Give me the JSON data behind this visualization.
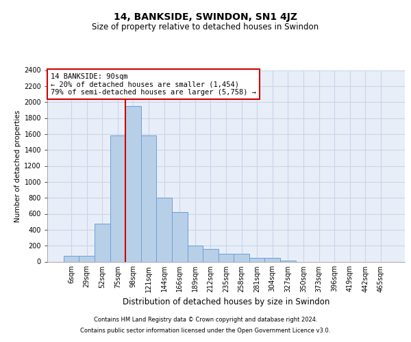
{
  "title1": "14, BANKSIDE, SWINDON, SN1 4JZ",
  "title2": "Size of property relative to detached houses in Swindon",
  "xlabel": "Distribution of detached houses by size in Swindon",
  "ylabel": "Number of detached properties",
  "footer1": "Contains HM Land Registry data © Crown copyright and database right 2024.",
  "footer2": "Contains public sector information licensed under the Open Government Licence v3.0.",
  "annotation_line1": "14 BANKSIDE: 90sqm",
  "annotation_line2": "← 20% of detached houses are smaller (1,454)",
  "annotation_line3": "79% of semi-detached houses are larger (5,758) →",
  "bar_color": "#b8cfe8",
  "bar_edge_color": "#6a9fd8",
  "vline_color": "#cc0000",
  "annotation_box_color": "#cc0000",
  "grid_color": "#c8d4e8",
  "bg_color": "#e8eef8",
  "categories": [
    "6sqm",
    "29sqm",
    "52sqm",
    "75sqm",
    "98sqm",
    "121sqm",
    "144sqm",
    "166sqm",
    "189sqm",
    "212sqm",
    "235sqm",
    "258sqm",
    "281sqm",
    "304sqm",
    "327sqm",
    "350sqm",
    "373sqm",
    "396sqm",
    "419sqm",
    "442sqm",
    "465sqm"
  ],
  "values": [
    75,
    75,
    480,
    1580,
    1950,
    1580,
    800,
    620,
    200,
    160,
    100,
    100,
    50,
    50,
    10,
    0,
    0,
    0,
    0,
    0,
    0
  ],
  "ylim": [
    0,
    2400
  ],
  "yticks": [
    0,
    200,
    400,
    600,
    800,
    1000,
    1200,
    1400,
    1600,
    1800,
    2000,
    2200,
    2400
  ],
  "vline_x_idx": 4,
  "title1_fontsize": 10,
  "title2_fontsize": 8.5,
  "ylabel_fontsize": 7.5,
  "xlabel_fontsize": 8.5,
  "tick_fontsize": 7,
  "annot_fontsize": 7.5,
  "footer_fontsize": 6
}
